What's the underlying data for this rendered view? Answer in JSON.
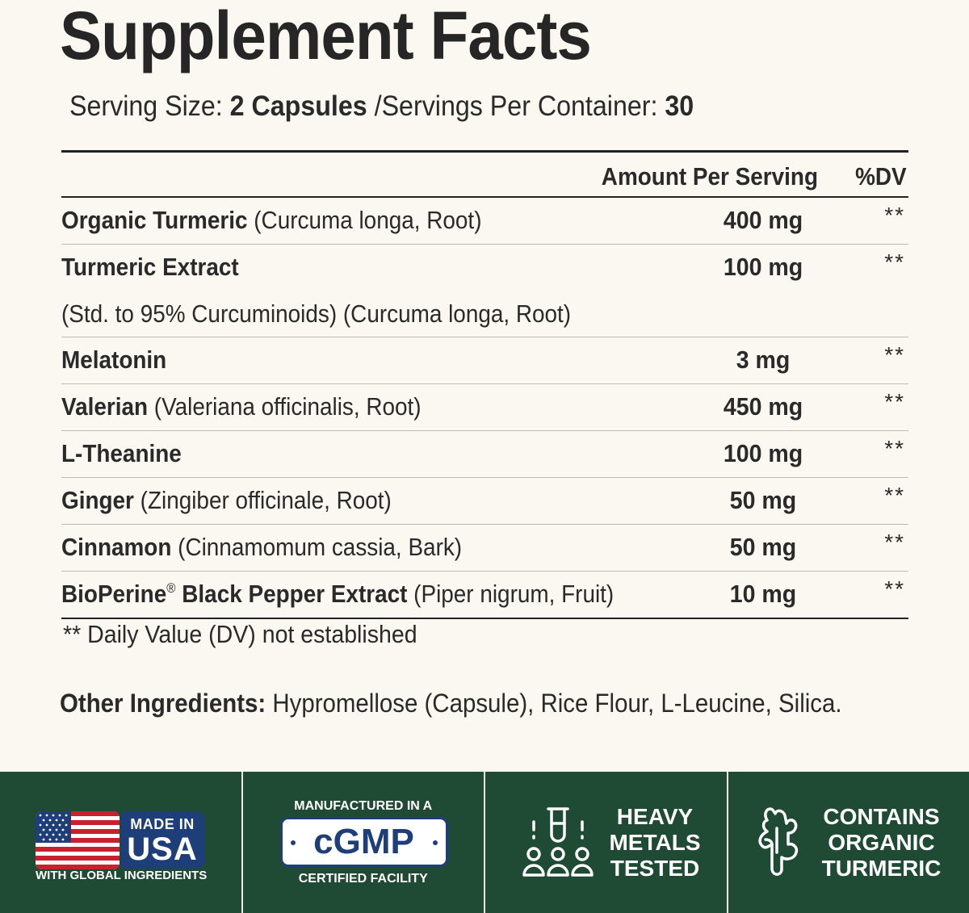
{
  "title": "Supplement Facts",
  "serving": {
    "size_label": "Serving Size: ",
    "size_value": "2 Capsules",
    "per_container_label": " /Servings Per Container: ",
    "per_container_value": "30"
  },
  "table": {
    "header_amount": "Amount Per Serving",
    "header_dv": "%DV",
    "rows": [
      {
        "name": "Organic Turmeric",
        "detail": " (Curcuma longa, Root)",
        "amount": "400 mg",
        "dv": "**"
      },
      {
        "name": "Turmeric Extract",
        "detail": "",
        "sub": "(Std. to 95% Curcuminoids) (Curcuma longa, Root)",
        "amount": "100 mg",
        "dv": "**"
      },
      {
        "name": "Melatonin",
        "detail": "",
        "amount": "3 mg",
        "dv": "**"
      },
      {
        "name": "Valerian",
        "detail": " (Valeriana officinalis, Root)",
        "amount": "450 mg",
        "dv": "**"
      },
      {
        "name": "L-Theanine",
        "detail": "",
        "amount": "100 mg",
        "dv": "**"
      },
      {
        "name": "Ginger",
        "detail": " (Zingiber officinale, Root)",
        "amount": "50 mg",
        "dv": "**"
      },
      {
        "name": "Cinnamon",
        "detail": " (Cinnamomum cassia, Bark)",
        "amount": "50 mg",
        "dv": "**"
      },
      {
        "name": "BioPerine",
        "mark": "®",
        "name_rest": " Black Pepper Extract",
        "detail": " (Piper nigrum, Fruit)",
        "amount": "10 mg",
        "dv": "**"
      }
    ]
  },
  "footnote": "** Daily Value (DV) not established",
  "other_ingredients": {
    "label": "Other Ingredients:",
    "value": " Hypromellose (Capsule), Rice Flour, L-Leucine, Silica."
  },
  "badges": {
    "usa": {
      "made_in": "MADE IN",
      "usa": "USA",
      "caption": "WITH GLOBAL INGREDIENTS"
    },
    "gmp": {
      "top": "MANUFACTURED IN A",
      "main": "cGMP",
      "bottom": "CERTIFIED FACILITY"
    },
    "metals": {
      "line1": "HEAVY",
      "line2": "METALS",
      "line3": "TESTED"
    },
    "turmeric": {
      "line1": "CONTAINS",
      "line2": "ORGANIC",
      "line3": "TURMERIC"
    }
  },
  "colors": {
    "background": "#faf8f1",
    "badge_bar": "#1f4a34",
    "badge_blue": "#1e3e7a",
    "flag_red": "#c8202f"
  }
}
